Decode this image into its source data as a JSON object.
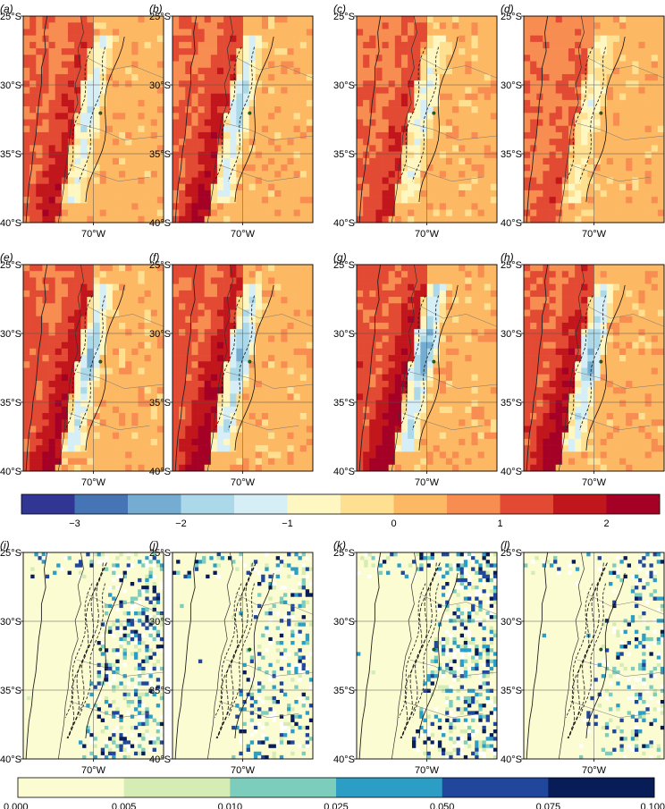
{
  "chart_data": {
    "type": "heatmap",
    "grid_lines": true,
    "anomaly_panels": [
      {
        "label": "(a)",
        "xlabel": "70°W",
        "yticks": [
          "25°S",
          "30°S",
          "35°S",
          "40°S"
        ],
        "intensity": 0.7
      },
      {
        "label": "(b)",
        "xlabel": "70°W",
        "yticks": [
          "25°S",
          "30°S",
          "35°S",
          "40°S"
        ],
        "intensity": 0.8
      },
      {
        "label": "(c)",
        "xlabel": "70°W",
        "yticks": [
          "25°S",
          "30°S",
          "35°S",
          "40°S"
        ],
        "intensity": 0.6
      },
      {
        "label": "(d)",
        "xlabel": "70°W",
        "yticks": [
          "25°S",
          "30°S",
          "35°S",
          "40°S"
        ],
        "intensity": 0.4
      },
      {
        "label": "(e)",
        "xlabel": "70°W",
        "yticks": [
          "25°S",
          "30°S",
          "35°S",
          "40°S"
        ],
        "intensity": 0.9
      },
      {
        "label": "(f)",
        "xlabel": "70°W",
        "yticks": [
          "25°S",
          "30°S",
          "35°S",
          "40°S"
        ],
        "intensity": 1.0
      },
      {
        "label": "(g)",
        "xlabel": "70°W",
        "yticks": [
          "25°S",
          "30°S",
          "35°S",
          "40°S"
        ],
        "intensity": 1.05
      },
      {
        "label": "(h)",
        "xlabel": "70°W",
        "yticks": [
          "25°S",
          "30°S",
          "35°S",
          "40°S"
        ],
        "intensity": 0.95
      }
    ],
    "significance_panels": [
      {
        "label": "(i)",
        "xlabel": "70°W",
        "yticks": [
          "25°S",
          "30°S",
          "35°S",
          "40°S"
        ],
        "density": 0.3,
        "seed": 11
      },
      {
        "label": "(j)",
        "xlabel": "70°W",
        "yticks": [
          "25°S",
          "30°S",
          "35°S",
          "40°S"
        ],
        "density": 0.22,
        "seed": 23
      },
      {
        "label": "(k)",
        "xlabel": "70°W",
        "yticks": [
          "25°S",
          "30°S",
          "35°S",
          "40°S"
        ],
        "density": 0.34,
        "seed": 37
      },
      {
        "label": "(l)",
        "xlabel": "70°W",
        "yticks": [
          "25°S",
          "30°S",
          "35°S",
          "40°S"
        ],
        "density": 0.2,
        "seed": 51
      }
    ],
    "colorbar_anomaly": {
      "colors": [
        "#313695",
        "#4575b4",
        "#74add1",
        "#abd9e9",
        "#d6eef6",
        "#fff7c2",
        "#fee090",
        "#fdb863",
        "#f88d52",
        "#e34a33",
        "#c2161d",
        "#a50026"
      ],
      "min": -3.5,
      "max": 2.5,
      "ticks": [
        {
          "value": -3,
          "label": "−3"
        },
        {
          "value": -2,
          "label": "−2"
        },
        {
          "value": -1,
          "label": "−1"
        },
        {
          "value": 0,
          "label": "0"
        },
        {
          "value": 1,
          "label": "1"
        },
        {
          "value": 2,
          "label": "2"
        }
      ]
    },
    "colorbar_significance": {
      "colors": [
        "#fcfcd2",
        "#d5ecb4",
        "#7ccdbb",
        "#2c9ec6",
        "#21479c",
        "#081d58"
      ],
      "edges": [
        "0.000",
        "0.005",
        "0.010",
        "0.025",
        "0.050",
        "0.075",
        "0.100"
      ]
    }
  }
}
